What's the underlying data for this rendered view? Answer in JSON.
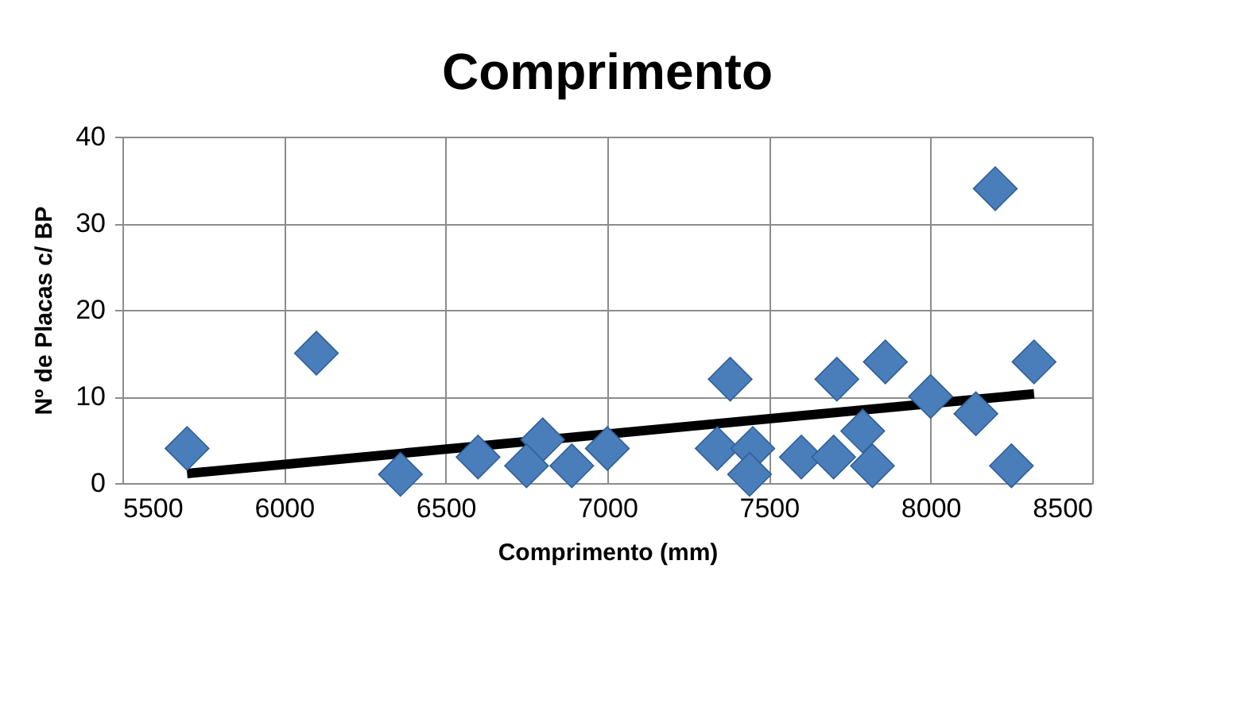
{
  "chart_data": {
    "type": "scatter",
    "title": "Comprimento",
    "xlabel": "Comprimento (mm)",
    "ylabel": "Nº de Placas c/ BP",
    "xlim": [
      5500,
      8500
    ],
    "xticks": [
      5500,
      6000,
      6500,
      7000,
      7500,
      8000,
      8500
    ],
    "ylim": [
      0,
      40
    ],
    "yticks": [
      0,
      10,
      20,
      30,
      40
    ],
    "grid": true,
    "marker": "diamond",
    "series": [
      {
        "type": "line",
        "color": "#000000",
        "marker": "none",
        "line_style": "solid",
        "x": [
          5700,
          8320
        ],
        "values": [
          1.1,
          10.3
        ]
      },
      {
        "color": "#4a7ebb",
        "x": [
          5700,
          6100,
          6360,
          6600,
          6800,
          6750,
          6890,
          7000,
          7380,
          7340,
          7450,
          7440,
          7600,
          7710,
          7860,
          7700,
          7790,
          7820,
          8000,
          8140,
          8200,
          8250,
          8320
        ],
        "values": [
          4,
          15,
          1,
          3,
          5,
          2,
          2,
          4,
          12,
          4,
          4,
          1,
          3,
          12,
          14,
          3,
          6,
          2,
          10,
          8,
          34,
          2,
          14
        ]
      }
    ]
  }
}
